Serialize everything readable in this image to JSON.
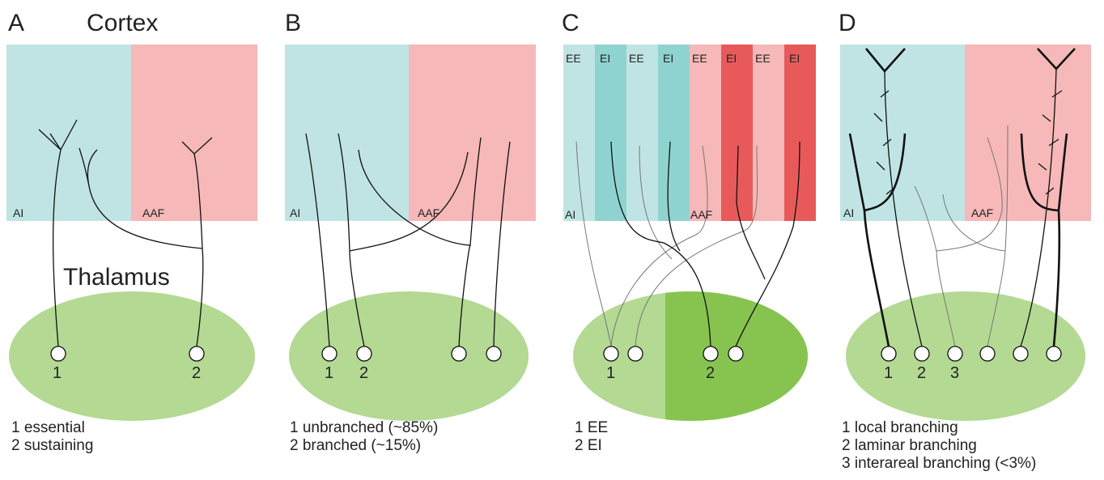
{
  "panels": [
    {
      "letter": "A",
      "title": "Cortex",
      "region_left": "AI",
      "region_right": "AAF",
      "thalamus": "Thalamus",
      "neuron_labels": [
        "1",
        "2"
      ],
      "legend": [
        "1 essential",
        "2 sustaining"
      ]
    },
    {
      "letter": "B",
      "region_left": "AI",
      "region_right": "AAF",
      "neuron_labels": [
        "1",
        "2"
      ],
      "legend": [
        "1 unbranched (~85%)",
        "2 branched (~15%)"
      ]
    },
    {
      "letter": "C",
      "columns": [
        "EE",
        "EI",
        "EE",
        "EI",
        "EE",
        "EI",
        "EE",
        "EI"
      ],
      "region_left": "AI",
      "region_right": "AAF",
      "neuron_labels": [
        "1",
        "2"
      ],
      "legend": [
        "1 EE",
        "2 EI"
      ]
    },
    {
      "letter": "D",
      "region_left": "AI",
      "region_right": "AAF",
      "neuron_labels": [
        "1",
        "2",
        "3"
      ],
      "legend": [
        "1 local branching",
        "2 laminar branching",
        "3 interareal branching (<3%)"
      ]
    }
  ]
}
